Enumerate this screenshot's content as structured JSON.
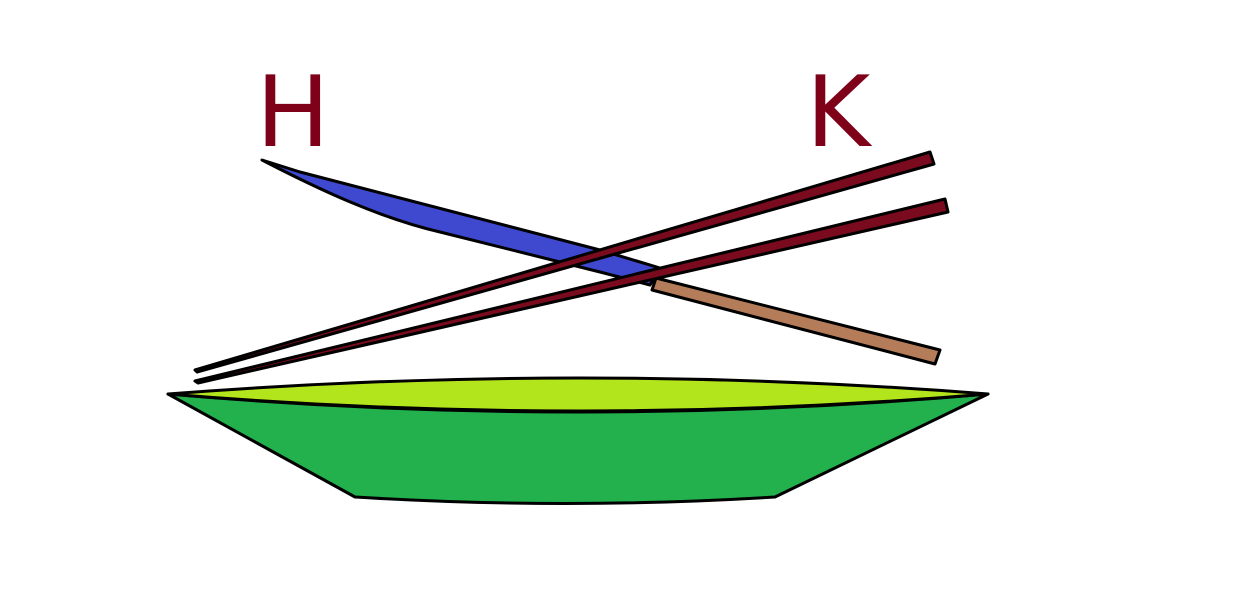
{
  "labels": {
    "left": "H",
    "right": "K"
  },
  "colors": {
    "letter": "#7f0019",
    "spoon": "#3f49cf",
    "spoon_handle": "#b57c5a",
    "chopstick": "#7a0a1e",
    "bowl_rim": "#b3e51c",
    "bowl_body": "#22b14c",
    "outline": "#000000"
  },
  "objects": [
    "spoon",
    "chopstick-upper",
    "chopstick-lower",
    "bowl"
  ]
}
